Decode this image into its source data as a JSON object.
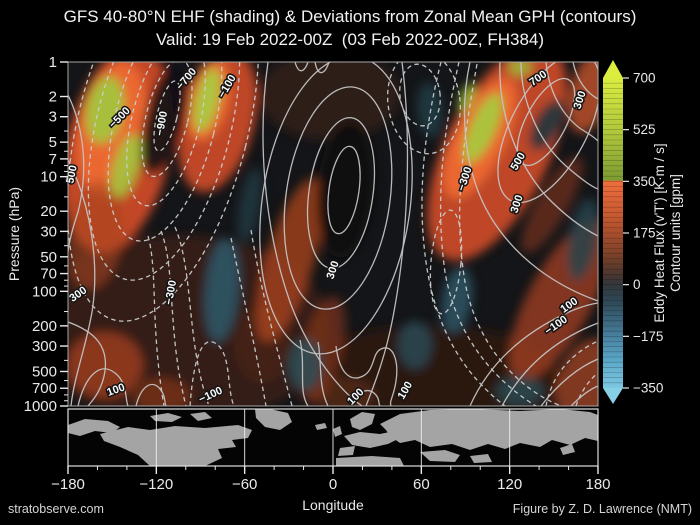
{
  "figure": {
    "watermark": "stratobserve.com",
    "credit": "Figure by Z. D. Lawrence (NMT)"
  },
  "chart_data": {
    "type": "heatmap",
    "title": "GFS 40-80°N EHF (shading) & Deviations from Zonal Mean GPH (contours)",
    "subtitle": "Valid: 19 Feb 2022-00Z  (03 Feb 2022-00Z, FH384)",
    "xlabel": "Longitude",
    "ylabel": "Pressure (hPa)",
    "x_range": [
      -180,
      180
    ],
    "y_range_hpa": [
      1,
      1000
    ],
    "y_scale": "log",
    "shading_quantity": "Eddy Heat Flux (v'T')",
    "shading_units": "K·m/s",
    "shading_range": [
      -350,
      700
    ],
    "contour_quantity": "Deviations from Zonal Mean GPH",
    "contour_units": "gpm",
    "contour_interval": 100,
    "x_ticks": [
      -180,
      -120,
      -60,
      0,
      60,
      120,
      180
    ],
    "x_minor_ticks": [
      -160,
      -140,
      -100,
      -80,
      -40,
      -20,
      20,
      40,
      80,
      100,
      140,
      160
    ],
    "y_ticks": [
      1,
      2,
      3,
      5,
      7,
      10,
      20,
      30,
      50,
      70,
      100,
      200,
      300,
      500,
      700,
      1000
    ],
    "y_minor_ticks": [
      4,
      6,
      8,
      9,
      15,
      40,
      60,
      80,
      90,
      150,
      400,
      600,
      800,
      900
    ],
    "colorbar": {
      "ticks": [
        700,
        525,
        350,
        175,
        0,
        -175,
        -350
      ],
      "label_line1": "Eddy Heat Flux (v'T') [K·m / s]",
      "label_line2": "Contour units [gpm]",
      "segments": 60,
      "stops": [
        [
          700,
          "#d9ec3f"
        ],
        [
          525,
          "#b2c93c"
        ],
        [
          355,
          "#7d9c32"
        ],
        [
          350,
          "#ef6e3c"
        ],
        [
          240,
          "#c85a31"
        ],
        [
          175,
          "#a84e2e"
        ],
        [
          90,
          "#744029"
        ],
        [
          30,
          "#473631"
        ],
        [
          0,
          "#33373c"
        ],
        [
          -60,
          "#2f4a58"
        ],
        [
          -175,
          "#47809f"
        ],
        [
          -260,
          "#5ba8c9"
        ],
        [
          -350,
          "#7cc8e2"
        ]
      ],
      "arrow_top_color": "#dbee40",
      "arrow_bottom_color": "#86cfe6"
    },
    "geom": {
      "plot": {
        "x0": 68,
        "x1": 598,
        "y0": 62,
        "y1": 406
      },
      "map": {
        "y0": 409,
        "y1": 466
      },
      "cbar": {
        "x0": 603,
        "x1": 623,
        "y0": 78,
        "y1": 388
      }
    },
    "colors": {
      "plot_bg": "#141518",
      "contour_solid": "#c3c3c3",
      "contour_dashed": "#c9cdce",
      "axis_text": "#eaeaea",
      "plot_border": "#a8a8a8",
      "map_land": "#a4a4a4",
      "map_ocean": "#040404",
      "map_grid": "#f0f0f0",
      "label_text": "#fafafa",
      "label_halo": "#141414"
    },
    "shading_blobs": [
      {
        "cx": 180,
        "cy": 330,
        "rx": 150,
        "ry": 95,
        "rot": 0,
        "c": "#361f15",
        "o": 0.9
      },
      {
        "cx": 330,
        "cy": 95,
        "rx": 70,
        "ry": 45,
        "rot": 0,
        "c": "#33201a",
        "o": 0.85
      },
      {
        "cx": 430,
        "cy": 380,
        "rx": 130,
        "ry": 55,
        "rot": 0,
        "c": "#2e1b13",
        "o": 0.85
      },
      {
        "cx": 262,
        "cy": 345,
        "rx": 28,
        "ry": 38,
        "rot": 0,
        "c": "#4a2517",
        "o": 0.8
      },
      {
        "cx": 345,
        "cy": 395,
        "rx": 30,
        "ry": 18,
        "rot": 0,
        "c": "#57291a",
        "o": 0.8
      },
      {
        "cx": 118,
        "cy": 150,
        "rx": 52,
        "ry": 105,
        "rot": 12,
        "c": "#d24d27",
        "o": 0.92
      },
      {
        "cx": 112,
        "cy": 128,
        "rx": 33,
        "ry": 68,
        "rot": 12,
        "c": "#ef6a33",
        "o": 0.9
      },
      {
        "cx": 95,
        "cy": 235,
        "rx": 28,
        "ry": 55,
        "rot": 8,
        "c": "#a84422",
        "o": 0.6
      },
      {
        "cx": 105,
        "cy": 110,
        "rx": 19,
        "ry": 34,
        "rot": 10,
        "c": "#a4c43e",
        "o": 0.95
      },
      {
        "cx": 126,
        "cy": 166,
        "rx": 13,
        "ry": 33,
        "rot": 16,
        "c": "#a4c43e",
        "o": 0.9
      },
      {
        "cx": 218,
        "cy": 122,
        "rx": 36,
        "ry": 72,
        "rot": 15,
        "c": "#d24d27",
        "o": 0.9
      },
      {
        "cx": 208,
        "cy": 100,
        "rx": 21,
        "ry": 42,
        "rot": 13,
        "c": "#ef6a33",
        "o": 0.9
      },
      {
        "cx": 207,
        "cy": 100,
        "rx": 12,
        "ry": 33,
        "rot": 13,
        "c": "#aaca40",
        "o": 0.95
      },
      {
        "cx": 290,
        "cy": 260,
        "rx": 24,
        "ry": 85,
        "rot": 17,
        "c": "#b8481f",
        "o": 0.7
      },
      {
        "cx": 322,
        "cy": 350,
        "rx": 20,
        "ry": 55,
        "rot": 14,
        "c": "#993a1b",
        "o": 0.55
      },
      {
        "cx": 497,
        "cy": 152,
        "rx": 52,
        "ry": 118,
        "rot": 26,
        "c": "#d24d27",
        "o": 0.9
      },
      {
        "cx": 480,
        "cy": 138,
        "rx": 26,
        "ry": 66,
        "rot": 26,
        "c": "#ef6a33",
        "o": 0.9
      },
      {
        "cx": 483,
        "cy": 128,
        "rx": 13,
        "ry": 38,
        "rot": 24,
        "c": "#a8c83f",
        "o": 0.95
      },
      {
        "cx": 467,
        "cy": 98,
        "rx": 7,
        "ry": 16,
        "rot": 20,
        "c": "#9cbd3a",
        "o": 0.85
      },
      {
        "cx": 520,
        "cy": 67,
        "rx": 12,
        "ry": 9,
        "rot": 0,
        "c": "#9cbd3a",
        "o": 0.85
      },
      {
        "cx": 560,
        "cy": 300,
        "rx": 32,
        "ry": 90,
        "rot": 28,
        "c": "#b04522",
        "o": 0.7
      },
      {
        "cx": 586,
        "cy": 382,
        "rx": 28,
        "ry": 45,
        "rot": 20,
        "c": "#bb4b24",
        "o": 0.65
      },
      {
        "cx": 590,
        "cy": 92,
        "rx": 20,
        "ry": 42,
        "rot": 15,
        "c": "#c4542b",
        "o": 0.8
      },
      {
        "cx": 552,
        "cy": 205,
        "rx": 16,
        "ry": 55,
        "rot": 30,
        "c": "#8f3a1d",
        "o": 0.55
      },
      {
        "cx": 105,
        "cy": 365,
        "rx": 38,
        "ry": 33,
        "rot": 0,
        "c": "#b04522",
        "o": 0.7
      },
      {
        "cx": 162,
        "cy": 396,
        "rx": 28,
        "ry": 18,
        "rot": 0,
        "c": "#8a371c",
        "o": 0.65
      },
      {
        "cx": 165,
        "cy": 118,
        "rx": 20,
        "ry": 58,
        "rot": 14,
        "c": "#101114",
        "o": 0.9
      },
      {
        "cx": 345,
        "cy": 190,
        "rx": 28,
        "ry": 68,
        "rot": 5,
        "c": "#0e0f11",
        "o": 0.9
      },
      {
        "cx": 222,
        "cy": 290,
        "rx": 17,
        "ry": 52,
        "rot": 5,
        "c": "#2e5b6c",
        "o": 0.85
      },
      {
        "cx": 250,
        "cy": 205,
        "rx": 11,
        "ry": 38,
        "rot": 10,
        "c": "#253f48",
        "o": 0.7
      },
      {
        "cx": 305,
        "cy": 365,
        "rx": 17,
        "ry": 26,
        "rot": 0,
        "c": "#2a525c",
        "o": 0.8
      },
      {
        "cx": 415,
        "cy": 345,
        "rx": 17,
        "ry": 24,
        "rot": 0,
        "c": "#2a525c",
        "o": 0.75
      },
      {
        "cx": 457,
        "cy": 300,
        "rx": 15,
        "ry": 33,
        "rot": 8,
        "c": "#2e5b6c",
        "o": 0.8
      },
      {
        "cx": 430,
        "cy": 110,
        "rx": 13,
        "ry": 28,
        "rot": -5,
        "c": "#223f48",
        "o": 0.8
      },
      {
        "cx": 547,
        "cy": 125,
        "rx": 13,
        "ry": 28,
        "rot": 28,
        "c": "#1d363e",
        "o": 0.9
      },
      {
        "cx": 583,
        "cy": 240,
        "rx": 15,
        "ry": 42,
        "rot": 10,
        "c": "#24454f",
        "o": 0.8
      },
      {
        "cx": 520,
        "cy": 391,
        "rx": 24,
        "ry": 15,
        "rot": 0,
        "c": "#2a525c",
        "o": 0.7
      }
    ],
    "contours_dashed_ellipses": [
      {
        "cx": 167,
        "cy": 116,
        "rx": 10,
        "ry": 36,
        "rot": 14
      },
      {
        "cx": 167,
        "cy": 118,
        "rx": 21,
        "ry": 60,
        "rot": 14
      },
      {
        "cx": 166,
        "cy": 120,
        "rx": 34,
        "ry": 88,
        "rot": 14
      },
      {
        "cx": 165,
        "cy": 122,
        "rx": 50,
        "ry": 122,
        "rot": 14
      },
      {
        "cx": 164,
        "cy": 124,
        "rx": 67,
        "ry": 160,
        "rot": 14
      },
      {
        "cx": 163,
        "cy": 126,
        "rx": 85,
        "ry": 200,
        "rot": 14
      },
      {
        "cx": 420,
        "cy": 95,
        "rx": 20,
        "ry": 31,
        "rot": -8
      },
      {
        "cx": 424,
        "cy": 102,
        "rx": 36,
        "ry": 52,
        "rot": -8
      },
      {
        "cx": 446,
        "cy": 262,
        "rx": 15,
        "ry": 52,
        "rot": 5
      }
    ],
    "contours_dashed_paths": [
      "M148,236 C158,272 150,324 164,406",
      "M161,231 C176,270 167,332 186,406",
      "M175,227 C194,272 186,342 209,406",
      "M190,406 C194,352 204,332 219,346 C231,359 227,390 234,406",
      "M231,238 C242,292 255,344 266,406",
      "M251,230 C261,292 276,344 292,406",
      "M441,62 C426,122 416,192 426,262 C436,332 466,376 505,406",
      "M459,62 C443,132 435,202 445,272 C456,337 495,381 536,406",
      "M477,64 C463,142 453,212 465,282 C477,347 520,390 561,406",
      "M546,406 C551,380 566,356 598,341",
      "M576,406 C581,391 590,379 598,373"
    ],
    "contours_solid_ellipses": [
      {
        "cx": 344,
        "cy": 190,
        "rx": 15,
        "ry": 44,
        "rot": 8
      },
      {
        "cx": 341,
        "cy": 193,
        "rx": 32,
        "ry": 76,
        "rot": 8
      },
      {
        "cx": 338,
        "cy": 198,
        "rx": 52,
        "ry": 112,
        "rot": 8
      },
      {
        "cx": 336,
        "cy": 205,
        "rx": 74,
        "ry": 150,
        "rot": 8
      },
      {
        "cx": 546,
        "cy": 122,
        "rx": 20,
        "ry": 48,
        "rot": 28
      },
      {
        "cx": 549,
        "cy": 128,
        "rx": 38,
        "ry": 82,
        "rot": 28
      }
    ],
    "contours_solid_paths": [
      "M68,95 C85,130 88,172 78,212 C72,230 69,242 68,252",
      "M68,160 C90,202 100,262 92,312 C86,347 74,377 71,406",
      "M68,322 C96,332 108,347 105,371 C102,391 92,401 88,406",
      "M78,406 C85,376 100,361 115,373 C128,383 125,400 128,406",
      "M136,406 C141,386 152,379 160,389 C166,396 164,402 166,406",
      "M268,62 C258,132 262,222 290,302 C310,356 342,392 362,406",
      "M402,62 C412,142 408,242 392,322 C384,362 372,390 366,406",
      "M295,62 C299,76 305,71 308,62",
      "M315,62 C318,79 326,73 329,62",
      "M500,62 C498,112 516,162 546,196 C571,222 590,232 598,236",
      "M521,62 C521,102 539,142 566,166 C581,179 592,187 598,189",
      "M546,62 C549,93 563,116 581,129 C591,135 596,139 598,141",
      "M573,62 C577,81 587,93 598,99",
      "M470,62 C459,112 464,172 490,216 C516,259 556,286 598,301",
      "M470,406 C490,361 526,331 571,311 C581,307 590,304 598,303",
      "M502,406 C521,371 551,341 598,323",
      "M541,406 C559,383 579,367 598,359",
      "M571,406 C581,396 590,389 598,386",
      "M300,340 C306,366 298,391 308,406",
      "M318,342 C322,362 318,386 328,406",
      "M336,346 C339,371 349,383 363,376 C375,370 372,353 381,349 C393,343 399,361 396,381 C394,396 389,401 391,406",
      "M352,406 C356,393 366,387 374,393 C380,398 378,403 380,406"
    ],
    "contour_labels": [
      {
        "v": 500,
        "x": 75,
        "y": 175,
        "r": -78
      },
      {
        "v": -500,
        "x": 122,
        "y": 120,
        "r": -45
      },
      {
        "v": -900,
        "x": 165,
        "y": 124,
        "r": -80
      },
      {
        "v": -700,
        "x": 189,
        "y": 81,
        "r": -50
      },
      {
        "v": -100,
        "x": 230,
        "y": 88,
        "r": -60
      },
      {
        "v": 300,
        "x": 80,
        "y": 297,
        "r": -35
      },
      {
        "v": -300,
        "x": 174,
        "y": 293,
        "r": -80
      },
      {
        "v": 100,
        "x": 117,
        "y": 393,
        "r": -20
      },
      {
        "v": -100,
        "x": 212,
        "y": 398,
        "r": -25
      },
      {
        "v": 300,
        "x": 336,
        "y": 271,
        "r": -72
      },
      {
        "v": 100,
        "x": 358,
        "y": 399,
        "r": -45
      },
      {
        "v": 100,
        "x": 408,
        "y": 392,
        "r": -60
      },
      {
        "v": -300,
        "x": 468,
        "y": 180,
        "r": -72
      },
      {
        "v": 500,
        "x": 521,
        "y": 163,
        "r": -60
      },
      {
        "v": 300,
        "x": 520,
        "y": 205,
        "r": -72
      },
      {
        "v": 700,
        "x": 540,
        "y": 81,
        "r": -35
      },
      {
        "v": 300,
        "x": 583,
        "y": 101,
        "r": -72
      },
      {
        "v": 100,
        "x": 571,
        "y": 308,
        "r": -35
      },
      {
        "v": -100,
        "x": 558,
        "y": 328,
        "r": -35
      }
    ],
    "map_land_paths": [
      "M68,425 L85,419 L108,421 L120,427 L112,433 L95,431 L80,436 L68,433 Z",
      "M100,434 L128,427 L150,430 L175,426 L205,428 L238,425 L252,430 L248,438 L232,440 L236,447 L218,449 L222,458 L205,466 L150,466 L138,455 L120,447 L104,441 Z",
      "M150,416 L168,413 L182,417 L172,422 L155,421 Z",
      "M190,414 L205,412 L212,418 L198,421 Z",
      "M255,409 L270,409 L288,413 L292,422 L280,430 L265,427 L256,418 Z",
      "M315,425 L325,423 L327,428 L317,430 Z",
      "M333,429 L340,426 L342,434 L335,437 Z",
      "M350,419 L362,412 L375,414 L372,424 L360,430 L352,427 Z",
      "M344,436 L360,432 L380,434 L395,431 L400,438 L388,444 L370,448 L352,445 Z",
      "M340,448 L355,446 L353,455 L338,456 Z",
      "M336,458 L372,456 L400,458 L404,466 L336,466 Z",
      "M380,424 L400,414 L430,410 L470,409 L520,411 L560,409 L590,412 L598,415 L598,441 L585,438 L570,445 L552,440 L540,447 L520,443 L505,449 L488,444 L470,450 L452,444 L430,447 L415,440 L400,443 L390,436 L386,430 Z",
      "M420,452 L445,450 L460,455 L455,462 L430,461 Z",
      "M470,456 L488,454 L492,462 L474,463 Z",
      "M560,448 L572,444 L575,452 L563,455 Z",
      "M578,430 L588,424 L590,435 L580,440 Z"
    ]
  }
}
